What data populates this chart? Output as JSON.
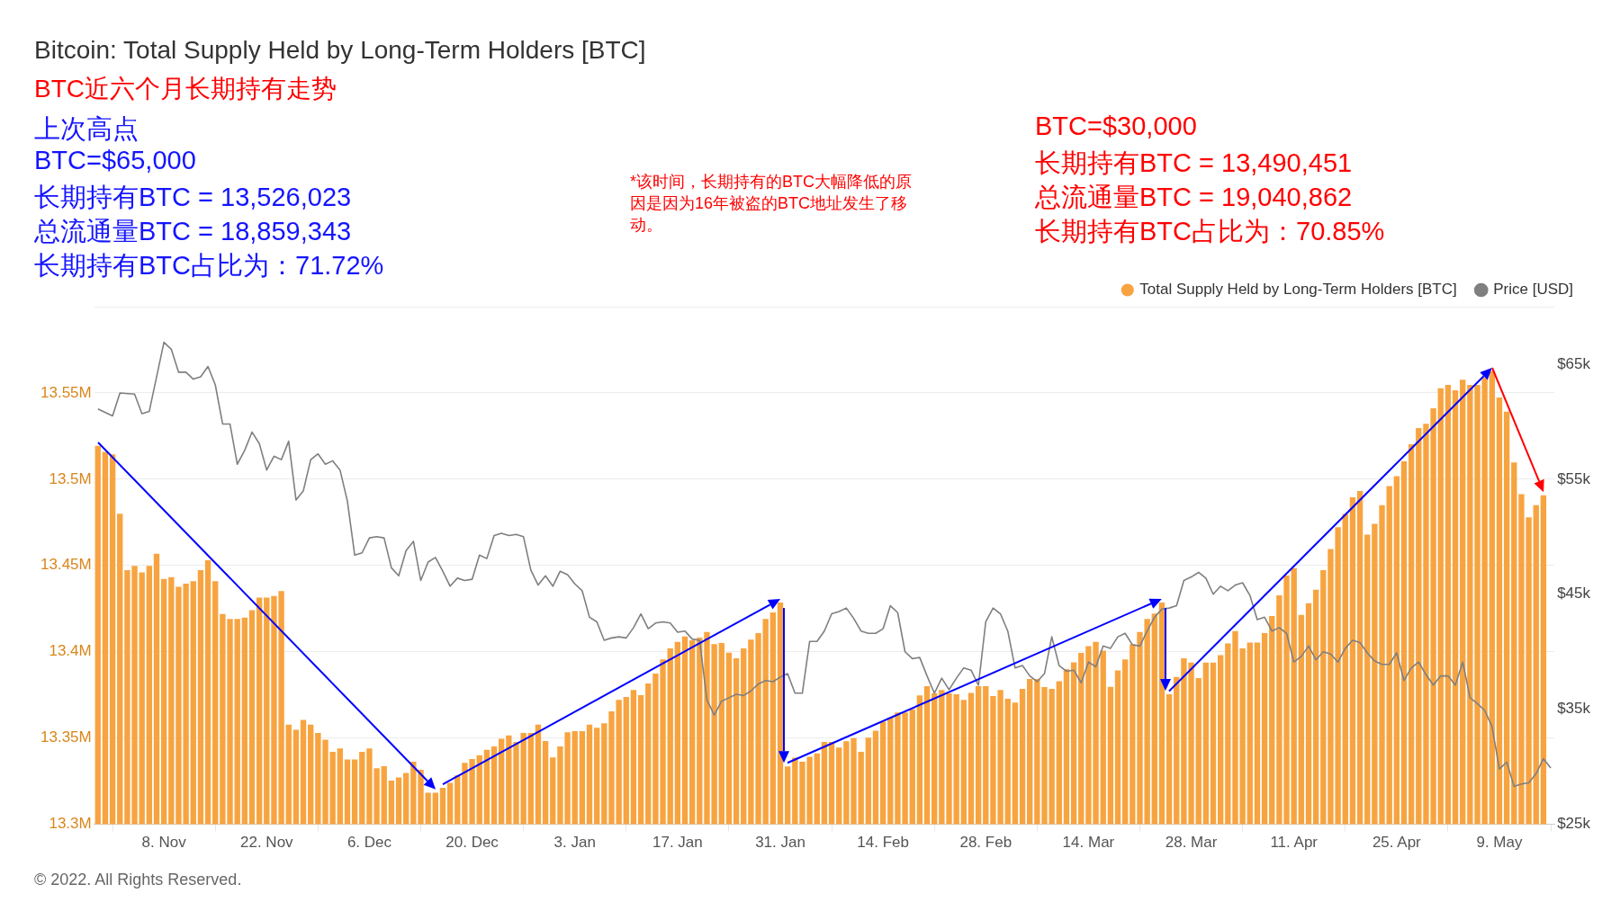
{
  "chart_data": {
    "type": "bar",
    "title": "Bitcoin: Total Supply Held by Long-Term Holders [BTC]",
    "subtitle": "BTC近六个月长期持有走势",
    "annotations": [
      "上次高点",
      "BTC=$65,000",
      "长期持有BTC = 13,526,023",
      "总流通量BTC = 18,859,343",
      "长期持有BTC占比为：71.72%",
      "BTC=$30,000",
      "长期持有BTC = 13,490,451",
      "总流通量BTC = 19,040,862",
      "长期持有BTC占比为：70.85%",
      "*该时间，长期持有的BTC大幅降低的原因是因为16年被盗的BTC地址发生了移动。",
      "© 2022. All Rights Reserved."
    ],
    "x": [
      "2021-10-30",
      "2021-10-31",
      "2021-11-01",
      "2021-11-02",
      "2021-11-03",
      "2021-11-04",
      "2021-11-05",
      "2021-11-06",
      "2021-11-07",
      "2021-11-08",
      "2021-11-09",
      "2021-11-10",
      "2021-11-11",
      "2021-11-12",
      "2021-11-13",
      "2021-11-14",
      "2021-11-15",
      "2021-11-16",
      "2021-11-17",
      "2021-11-18",
      "2021-11-19",
      "2021-11-20",
      "2021-11-21",
      "2021-11-22",
      "2021-11-23",
      "2021-11-24",
      "2021-11-25",
      "2021-11-26",
      "2021-11-27",
      "2021-11-28",
      "2021-11-29",
      "2021-11-30",
      "2021-12-01",
      "2021-12-02",
      "2021-12-03",
      "2021-12-04",
      "2021-12-05",
      "2021-12-06",
      "2021-12-07",
      "2021-12-08",
      "2021-12-09",
      "2021-12-10",
      "2021-12-11",
      "2021-12-12",
      "2021-12-13",
      "2021-12-14",
      "2021-12-15",
      "2021-12-16",
      "2021-12-17",
      "2021-12-18",
      "2021-12-19",
      "2021-12-20",
      "2021-12-21",
      "2021-12-22",
      "2021-12-23",
      "2021-12-24",
      "2021-12-25",
      "2021-12-26",
      "2021-12-27",
      "2021-12-28",
      "2021-12-29",
      "2021-12-30",
      "2021-12-31",
      "2022-01-01",
      "2022-01-02",
      "2022-01-03",
      "2022-01-04",
      "2022-01-05",
      "2022-01-06",
      "2022-01-07",
      "2022-01-08",
      "2022-01-09",
      "2022-01-10",
      "2022-01-11",
      "2022-01-12",
      "2022-01-13",
      "2022-01-14",
      "2022-01-15",
      "2022-01-16",
      "2022-01-17",
      "2022-01-18",
      "2022-01-19",
      "2022-01-20",
      "2022-01-21",
      "2022-01-22",
      "2022-01-23",
      "2022-01-24",
      "2022-01-25",
      "2022-01-26",
      "2022-01-27",
      "2022-01-28",
      "2022-01-29",
      "2022-01-30",
      "2022-01-31",
      "2022-02-01",
      "2022-02-02",
      "2022-02-03",
      "2022-02-04",
      "2022-02-05",
      "2022-02-06",
      "2022-02-07",
      "2022-02-08",
      "2022-02-09",
      "2022-02-10",
      "2022-02-11",
      "2022-02-12",
      "2022-02-13",
      "2022-02-14",
      "2022-02-15",
      "2022-02-16",
      "2022-02-17",
      "2022-02-18",
      "2022-02-19",
      "2022-02-20",
      "2022-02-21",
      "2022-02-22",
      "2022-02-23",
      "2022-02-24",
      "2022-02-25",
      "2022-02-26",
      "2022-02-27",
      "2022-02-28",
      "2022-03-01",
      "2022-03-02",
      "2022-03-03",
      "2022-03-04",
      "2022-03-05",
      "2022-03-06",
      "2022-03-07",
      "2022-03-08",
      "2022-03-09",
      "2022-03-10",
      "2022-03-11",
      "2022-03-12",
      "2022-03-13",
      "2022-03-14",
      "2022-03-15",
      "2022-03-16",
      "2022-03-17",
      "2022-03-18",
      "2022-03-19",
      "2022-03-20",
      "2022-03-21",
      "2022-03-22",
      "2022-03-23",
      "2022-03-24",
      "2022-03-25",
      "2022-03-26",
      "2022-03-27",
      "2022-03-28",
      "2022-03-29",
      "2022-03-30",
      "2022-03-31",
      "2022-04-01",
      "2022-04-02",
      "2022-04-03",
      "2022-04-04",
      "2022-04-05",
      "2022-04-06",
      "2022-04-07",
      "2022-04-08",
      "2022-04-09",
      "2022-04-10",
      "2022-04-11",
      "2022-04-12",
      "2022-04-13",
      "2022-04-14",
      "2022-04-15",
      "2022-04-16",
      "2022-04-17",
      "2022-04-18",
      "2022-04-19",
      "2022-04-20",
      "2022-04-21",
      "2022-04-22",
      "2022-04-23",
      "2022-04-24",
      "2022-04-25",
      "2022-04-26",
      "2022-04-27",
      "2022-04-28",
      "2022-04-29",
      "2022-04-30",
      "2022-05-01",
      "2022-05-02",
      "2022-05-03",
      "2022-05-04",
      "2022-05-05",
      "2022-05-06",
      "2022-05-07",
      "2022-05-08",
      "2022-05-09",
      "2022-05-10",
      "2022-05-11",
      "2022-05-12",
      "2022-05-13",
      "2022-05-14",
      "2022-05-15"
    ],
    "series": [
      {
        "name": "Total Supply Held by Long-Term Holders [BTC]",
        "axis": "y",
        "color": "#f7a440",
        "values": [
          13519400,
          13515800,
          13514400,
          13480000,
          13447300,
          13449800,
          13446000,
          13449800,
          13456800,
          13442200,
          13443300,
          13437600,
          13439500,
          13440900,
          13447300,
          13453000,
          13440900,
          13421900,
          13419000,
          13419000,
          13419800,
          13424100,
          13431400,
          13431400,
          13432300,
          13435200,
          13357800,
          13354800,
          13360500,
          13357800,
          13352900,
          13349000,
          13342000,
          13343900,
          13337600,
          13337600,
          13342000,
          13343900,
          13332500,
          13333700,
          13325300,
          13327200,
          13329700,
          13336300,
          13331600,
          13318300,
          13318300,
          13321100,
          13324000,
          13328300,
          13335600,
          13337800,
          13340100,
          13343200,
          13345100,
          13349600,
          13351500,
          13347700,
          13352900,
          13352900,
          13357800,
          13348300,
          13338800,
          13345200,
          13353400,
          13354000,
          13354000,
          13357800,
          13355900,
          13358600,
          13365400,
          13372100,
          13373800,
          13377800,
          13374900,
          13381600,
          13387300,
          13395600,
          13401900,
          13405700,
          13408900,
          13406700,
          13408200,
          13411400,
          13404400,
          13405100,
          13399500,
          13396200,
          13401900,
          13407000,
          13410800,
          13419000,
          13422800,
          13428500,
          13333500,
          13338600,
          13336300,
          13339200,
          13341100,
          13347700,
          13347700,
          13344500,
          13348100,
          13350000,
          13342000,
          13350200,
          13354200,
          13359500,
          13362000,
          13364800,
          13364800,
          13366700,
          13374700,
          13380000,
          13375900,
          13377800,
          13375900,
          13375300,
          13372100,
          13376200,
          13380000,
          13380000,
          13374300,
          13377800,
          13372800,
          13370500,
          13378500,
          13384200,
          13384200,
          13379500,
          13378500,
          13382900,
          13389900,
          13393900,
          13399400,
          13403200,
          13405700,
          13400600,
          13379700,
          13389200,
          13395600,
          13404400,
          13411400,
          13419000,
          13422200,
          13428500,
          13375300,
          13385400,
          13396200,
          13393700,
          13384800,
          13393700,
          13393700,
          13398100,
          13404800,
          13412000,
          13401900,
          13405300,
          13405300,
          13410800,
          13420700,
          13432700,
          13444100,
          13448500,
          13421300,
          13428100,
          13435900,
          13447300,
          13459500,
          13472200,
          13479800,
          13489500,
          13493200,
          13467900,
          13474100,
          13485000,
          13496000,
          13501700,
          13510300,
          13520200,
          13529700,
          13532100,
          13541100,
          13552700,
          13554600,
          13551500,
          13557600,
          13554600,
          13554600,
          13558900,
          13562700,
          13547300,
          13539200,
          13509700,
          13491300,
          13477900,
          13485000,
          13490700
        ]
      },
      {
        "name": "Price [USD]",
        "type": "line",
        "axis": "y2",
        "color": "#7f7f7f",
        "x": [
          "2021-10-30",
          "2021-11-01",
          "2021-11-02",
          "2021-11-04",
          "2021-11-05",
          "2021-11-06",
          "2021-11-08",
          "2021-11-09",
          "2021-11-10",
          "2021-11-11",
          "2021-11-12",
          "2021-11-13",
          "2021-11-14",
          "2021-11-15",
          "2021-11-16",
          "2021-11-17",
          "2021-11-18",
          "2021-11-19",
          "2021-11-20",
          "2021-11-21",
          "2021-11-22",
          "2021-11-23",
          "2021-11-24",
          "2021-11-25",
          "2021-11-26",
          "2021-11-27",
          "2021-11-28",
          "2021-11-29",
          "2021-11-30",
          "2021-12-01",
          "2021-12-02",
          "2021-12-03",
          "2021-12-04",
          "2021-12-05",
          "2021-12-06",
          "2021-12-07",
          "2021-12-08",
          "2021-12-09",
          "2021-12-10",
          "2021-12-11",
          "2021-12-12",
          "2021-12-13",
          "2021-12-14",
          "2021-12-15",
          "2021-12-16",
          "2021-12-17",
          "2021-12-18",
          "2021-12-19",
          "2021-12-20",
          "2021-12-21",
          "2021-12-22",
          "2021-12-23",
          "2021-12-24",
          "2021-12-25",
          "2021-12-26",
          "2021-12-27",
          "2021-12-28",
          "2021-12-29",
          "2021-12-30",
          "2021-12-31",
          "2022-01-01",
          "2022-01-02",
          "2022-01-03",
          "2022-01-04",
          "2022-01-05",
          "2022-01-06",
          "2022-01-07",
          "2022-01-08",
          "2022-01-09",
          "2022-01-10",
          "2022-01-11",
          "2022-01-12",
          "2022-01-13",
          "2022-01-14",
          "2022-01-15",
          "2022-01-16",
          "2022-01-17",
          "2022-01-18",
          "2022-01-19",
          "2022-01-20",
          "2022-01-21",
          "2022-01-22",
          "2022-01-23",
          "2022-01-24",
          "2022-01-25",
          "2022-01-26",
          "2022-01-27",
          "2022-01-28",
          "2022-01-29",
          "2022-01-30",
          "2022-01-31",
          "2022-02-01",
          "2022-02-02",
          "2022-02-03",
          "2022-02-04",
          "2022-02-05",
          "2022-02-06",
          "2022-02-07",
          "2022-02-08",
          "2022-02-09",
          "2022-02-10",
          "2022-02-11",
          "2022-02-12",
          "2022-02-13",
          "2022-02-14",
          "2022-02-15",
          "2022-02-16",
          "2022-02-17",
          "2022-02-18",
          "2022-02-19",
          "2022-02-20",
          "2022-02-21",
          "2022-02-22",
          "2022-02-23",
          "2022-02-24",
          "2022-02-25",
          "2022-02-26",
          "2022-02-27",
          "2022-02-28",
          "2022-03-01",
          "2022-03-02",
          "2022-03-03",
          "2022-03-04",
          "2022-03-05",
          "2022-03-06",
          "2022-03-07",
          "2022-03-08",
          "2022-03-09",
          "2022-03-10",
          "2022-03-11",
          "2022-03-12",
          "2022-03-13",
          "2022-03-14",
          "2022-03-15",
          "2022-03-16",
          "2022-03-17",
          "2022-03-18",
          "2022-03-19",
          "2022-03-20",
          "2022-03-21",
          "2022-03-22",
          "2022-03-23",
          "2022-03-24",
          "2022-03-25",
          "2022-03-26",
          "2022-03-27",
          "2022-03-28",
          "2022-03-29",
          "2022-03-30",
          "2022-03-31",
          "2022-04-01",
          "2022-04-02",
          "2022-04-03",
          "2022-04-04",
          "2022-04-05",
          "2022-04-06",
          "2022-04-07",
          "2022-04-08",
          "2022-04-09",
          "2022-04-10",
          "2022-04-11",
          "2022-04-12",
          "2022-04-13",
          "2022-04-14",
          "2022-04-15",
          "2022-04-16",
          "2022-04-17",
          "2022-04-18",
          "2022-04-19",
          "2022-04-20",
          "2022-04-21",
          "2022-04-22",
          "2022-04-23",
          "2022-04-24",
          "2022-04-25",
          "2022-04-26",
          "2022-04-27",
          "2022-04-28",
          "2022-04-29",
          "2022-04-30",
          "2022-05-01",
          "2022-05-02",
          "2022-05-03",
          "2022-05-04",
          "2022-05-05",
          "2022-05-06",
          "2022-05-07",
          "2022-05-08",
          "2022-05-09",
          "2022-05-10",
          "2022-05-11",
          "2022-05-12",
          "2022-05-13",
          "2022-05-14",
          "2022-05-15",
          "2022-05-16"
        ],
        "values": [
          61100,
          60500,
          62500,
          62400,
          60700,
          60900,
          66900,
          66300,
          64300,
          64300,
          63700,
          63900,
          64800,
          63200,
          59800,
          59800,
          56300,
          57500,
          59100,
          58100,
          55800,
          57000,
          56700,
          58300,
          53200,
          54000,
          56700,
          57200,
          56300,
          56600,
          55800,
          53100,
          48400,
          48600,
          49900,
          50000,
          49900,
          47300,
          46600,
          48800,
          49600,
          46200,
          47800,
          48200,
          47000,
          45700,
          46400,
          46200,
          46300,
          48400,
          48100,
          50100,
          50300,
          50100,
          50200,
          50000,
          47100,
          45800,
          46600,
          45700,
          47000,
          46700,
          45900,
          45300,
          43000,
          42600,
          41000,
          41200,
          41300,
          41200,
          42100,
          43300,
          42000,
          42500,
          42600,
          42500,
          41700,
          41800,
          41100,
          41000,
          35800,
          34500,
          35700,
          36000,
          36300,
          36200,
          36600,
          37200,
          37500,
          37400,
          37800,
          38100,
          36400,
          36400,
          40900,
          40900,
          41800,
          43300,
          43500,
          43800,
          42900,
          41800,
          41600,
          41600,
          42000,
          44000,
          43400,
          40000,
          39400,
          39500,
          37900,
          36400,
          37700,
          36700,
          37700,
          38600,
          38400,
          37100,
          42600,
          43800,
          43300,
          41800,
          38600,
          38800,
          37900,
          37400,
          38100,
          41300,
          38800,
          38300,
          38400,
          37300,
          39100,
          38700,
          40500,
          40300,
          41300,
          41600,
          40600,
          40500,
          41800,
          43000,
          43700,
          43800,
          44000,
          46200,
          46500,
          46900,
          46400,
          45000,
          45700,
          45300,
          45800,
          46000,
          44900,
          42800,
          43000,
          41800,
          42100,
          41600,
          39100,
          39600,
          40500,
          39300,
          40000,
          39800,
          39100,
          40300,
          41000,
          40800,
          39900,
          39200,
          38900,
          38900,
          39900,
          37500,
          38600,
          39100,
          38000,
          37100,
          37900,
          37900,
          37100,
          39100,
          36000,
          35500,
          34900,
          33500,
          29800,
          30400,
          28300,
          28500,
          28600,
          29400,
          30700,
          29900
        ]
      }
    ],
    "xlim": [
      "2021-10-29T12:00",
      "2022-05-16T12:00"
    ],
    "xticks": [
      {
        "value": "2021-11-08",
        "label": "8. Nov"
      },
      {
        "value": "2021-11-22",
        "label": "22. Nov"
      },
      {
        "value": "2021-12-06",
        "label": "6. Dec"
      },
      {
        "value": "2021-12-20",
        "label": "20. Dec"
      },
      {
        "value": "2022-01-03",
        "label": "3. Jan"
      },
      {
        "value": "2022-01-17",
        "label": "17. Jan"
      },
      {
        "value": "2022-01-31",
        "label": "31. Jan"
      },
      {
        "value": "2022-02-14",
        "label": "14. Feb"
      },
      {
        "value": "2022-02-28",
        "label": "28. Feb"
      },
      {
        "value": "2022-03-14",
        "label": "14. Mar"
      },
      {
        "value": "2022-03-28",
        "label": "28. Mar"
      },
      {
        "value": "2022-04-11",
        "label": "11. Apr"
      },
      {
        "value": "2022-04-25",
        "label": "25. Apr"
      },
      {
        "value": "2022-05-09",
        "label": "9. May"
      }
    ],
    "ylim": [
      13300000,
      13600000
    ],
    "yticks": [
      {
        "value": 13300000,
        "label": "13.3M"
      },
      {
        "value": 13350000,
        "label": "13.35M"
      },
      {
        "value": 13400000,
        "label": "13.4M"
      },
      {
        "value": 13450000,
        "label": "13.45M"
      },
      {
        "value": 13500000,
        "label": "13.5M"
      },
      {
        "value": 13550000,
        "label": "13.55M"
      },
      {
        "value": 13600000,
        "label": null
      }
    ],
    "y2lim": [
      25000,
      70000
    ],
    "y2ticks": [
      {
        "value": 25000,
        "label": "$25k"
      },
      {
        "value": 35000,
        "label": "$35k"
      },
      {
        "value": 45000,
        "label": "$45k"
      },
      {
        "value": 55000,
        "label": "$55k"
      },
      {
        "value": 65000,
        "label": "$65k"
      }
    ],
    "grid": "y",
    "legend": "top right",
    "marker": "none",
    "line_style": "solid"
  }
}
